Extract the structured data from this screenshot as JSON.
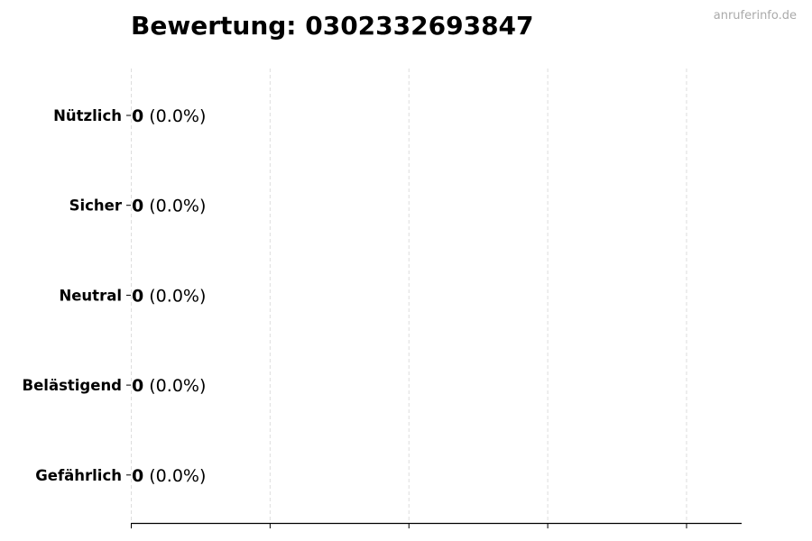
{
  "chart_data": {
    "type": "bar",
    "orientation": "horizontal",
    "title": "Bewertung: 0302332693847",
    "categories": [
      "Nützlich",
      "Sicher",
      "Neutral",
      "Belästigend",
      "Gefährlich"
    ],
    "values": [
      0,
      0,
      0,
      0,
      0
    ],
    "percentages": [
      "0.0%",
      "0.0%",
      "0.0%",
      "0.0%",
      "0.0%"
    ],
    "xlim": [
      0,
      4.4
    ],
    "xticks": [
      0,
      1,
      2,
      3,
      4
    ],
    "x_tick_labels_shown": false,
    "grid": "x dashed",
    "xlabel": "",
    "ylabel": "",
    "colors": {
      "grid": "#dddddd",
      "bar_edge": "#000000",
      "text": "#000000",
      "watermark": "#aaaaaa"
    }
  },
  "watermark": "anruferinfo.de"
}
